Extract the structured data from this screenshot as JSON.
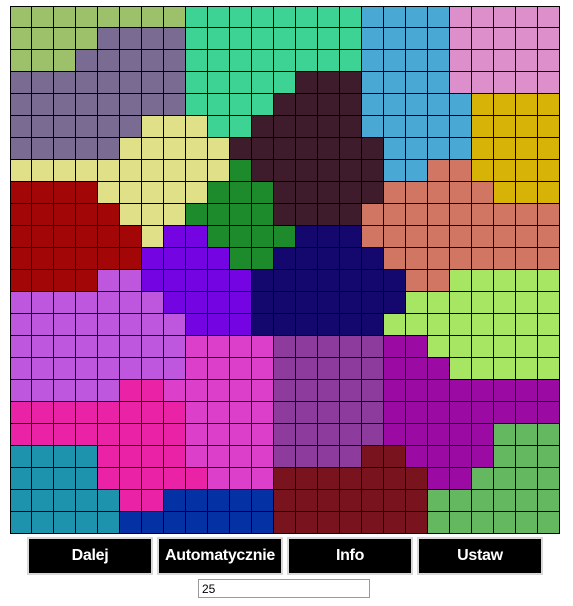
{
  "board": {
    "cols": 25,
    "rows": 24,
    "palette": {
      "A": "#9dc06a",
      "B": "#7a6b93",
      "C": "#3dd395",
      "D": "#4aa9d4",
      "E": "#dd8fcb",
      "F": "#3f1c2b",
      "G": "#d8b307",
      "H": "#e0e088",
      "I": "#1d8a2c",
      "J": "#d17663",
      "K": "#a30606",
      "L": "#7404e2",
      "M": "#14086e",
      "N": "#be56de",
      "O": "#a6e662",
      "P": "#dc40cb",
      "Q": "#8e3b9e",
      "R": "#9b0aa3",
      "S": "#ea22a6",
      "T": "#1d93ad",
      "U": "#64b960",
      "V": "#79141e",
      "W": "#0432a5"
    },
    "grid": [
      "AAAAAAAACCCCCCCCDDDDEEEEE",
      "AAAABBBBCCCCCCCCDDDDEEEEE",
      "AAABBBBBCCCCCCCCDDDDEEEEE",
      "BBBBBBBBCCCCCFFFDDDDEEEEE",
      "BBBBBBBBCCCCFFFFDDDDDGGGG",
      "BBBBBBHHHCCFFFFFDDDDDGGGG",
      "BBBBBHHHHHFFFFFFFDDDDGGGG",
      "HHHHHHHHHHIFFFFFFDDJJGGGG",
      "KKKKHHHHHIIIFFFFFJJJJJGGG",
      "KKKKKHHHIIIIFFFFJJJJJJJJJ",
      "KKKKKKHLLIIIIMMMJJJJJJJJJ",
      "KKKKKKLLLLIIMMMMMJJJJJJJJ",
      "KKKKNNLLLLLMMMMMMMJJOOOOO",
      "NNNNNNNLLLLMMMMMMMOOOOOOO",
      "NNNNNNNNLLLMMMMMMOOOOOOOO",
      "NNNNNNNNPPPPQQQQQRROOOOOO",
      "NNNNNNNNPPPPQQQQQRRROOOOO",
      "NNNNNSSPPPPPQQQQQRRRRRRRR",
      "SSSSSSSSPPPPQQQQQRRRRRRRR",
      "SSSSSSSSPPPPQQQQQRRRRRUUU",
      "TTTTSSSSPPPPQQQQVVRRRRUUU",
      "TTTTSSSSSPPPVVVVVVVRRUUUU",
      "TTTTTSSWWWWWVVVVVVVUUUUUU",
      "TTTTTWWWWWWWVVVVVVVUUUUUU"
    ]
  },
  "buttons": [
    "Dalej",
    "Automatycznie",
    "Info",
    "Ustaw"
  ],
  "count_input": {
    "value": "25"
  }
}
